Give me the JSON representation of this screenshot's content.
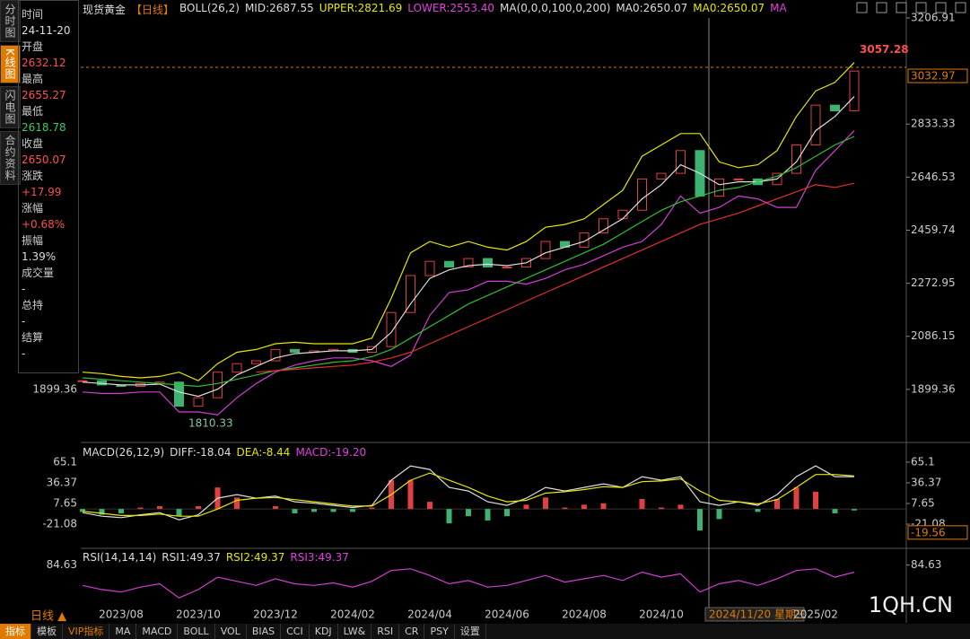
{
  "sidebar_tabs": [
    "分时图",
    "K线图",
    "闪电图",
    "合约资料"
  ],
  "info": [
    {
      "label": "时间",
      "value": "24-11-20",
      "color": "#ddd"
    },
    {
      "label": "开盘",
      "value": "2632.12",
      "color": "#ff5050"
    },
    {
      "label": "最高",
      "value": "2655.27",
      "color": "#ff5050"
    },
    {
      "label": "最低",
      "value": "2618.78",
      "color": "#3cc864"
    },
    {
      "label": "收盘",
      "value": "2650.07",
      "color": "#ff5050"
    },
    {
      "label": "涨跌",
      "value": "+17.99",
      "color": "#ff5050"
    },
    {
      "label": "涨幅",
      "value": "+0.68%",
      "color": "#ff5050"
    },
    {
      "label": "振幅",
      "value": "1.39%",
      "color": "#ddd"
    },
    {
      "label": "成交量",
      "value": "-",
      "color": "#ddd"
    },
    {
      "label": "总持",
      "value": "-",
      "color": "#ddd"
    },
    {
      "label": "结算",
      "value": "-",
      "color": "#ddd"
    }
  ],
  "header": {
    "instrument": "现货黄金",
    "period": "【日线】",
    "items": [
      {
        "text": "BOLL(26,2)",
        "color": "#ddd"
      },
      {
        "text": "MID:2687.55",
        "color": "#ddd"
      },
      {
        "text": "UPPER:2821.69",
        "color": "#e6e600"
      },
      {
        "text": "LOWER:2553.40",
        "color": "#e040e0"
      },
      {
        "text": "MA(0,0,0,100,0,200)",
        "color": "#ddd"
      },
      {
        "text": "MA0:2650.07",
        "color": "#ddd"
      },
      {
        "text": "MA0:2650.07",
        "color": "#e6e600"
      },
      {
        "text": "MA",
        "color": "#e040e0"
      }
    ]
  },
  "cursor": {
    "date": "2024/11/20 星期三"
  },
  "chart_data": [
    {
      "type": "candlestick",
      "categories": [
        null,
        null,
        "2023/08",
        null,
        null,
        null,
        "2023/10",
        null,
        null,
        null,
        "2023/12",
        null,
        null,
        null,
        "2024/02",
        null,
        null,
        null,
        "2024/04",
        null,
        null,
        null,
        "2024/06",
        null,
        null,
        null,
        "2024/08",
        null,
        null,
        null,
        "2024/10",
        null,
        null,
        null,
        null,
        null,
        null,
        null,
        "2025/02",
        null,
        null
      ],
      "close": [
        1930,
        1915,
        1910,
        1920,
        1925,
        1840,
        1870,
        1960,
        1990,
        2000,
        2040,
        2030,
        2035,
        2040,
        2030,
        2050,
        2170,
        2300,
        2350,
        2330,
        2360,
        2330,
        2330,
        2360,
        2420,
        2400,
        2450,
        2500,
        2530,
        2640,
        2660,
        2740,
        2580,
        2640,
        2640,
        2620,
        2660,
        2760,
        2900,
        2880,
        3020
      ],
      "up_color": "#e04040",
      "down_color": "#3cb371",
      "series": [
        {
          "color": "#e6e600",
          "values": [
            1960,
            1955,
            1945,
            1940,
            1945,
            1960,
            1930,
            1990,
            2030,
            2040,
            2060,
            2065,
            2060,
            2060,
            2060,
            2080,
            2220,
            2380,
            2420,
            2400,
            2420,
            2400,
            2390,
            2420,
            2470,
            2480,
            2500,
            2550,
            2600,
            2720,
            2760,
            2800,
            2800,
            2700,
            2680,
            2690,
            2740,
            2860,
            2950,
            2980,
            3050
          ]
        },
        {
          "color": "#dddddd",
          "values": [
            1925,
            1920,
            1915,
            1915,
            1918,
            1890,
            1875,
            1900,
            1950,
            1980,
            2010,
            2025,
            2030,
            2035,
            2035,
            2040,
            2100,
            2200,
            2290,
            2320,
            2335,
            2340,
            2335,
            2345,
            2380,
            2400,
            2420,
            2460,
            2500,
            2570,
            2620,
            2690,
            2660,
            2620,
            2630,
            2630,
            2640,
            2700,
            2810,
            2860,
            2930
          ]
        },
        {
          "color": "#d040d0",
          "values": [
            1890,
            1885,
            1885,
            1890,
            1890,
            1820,
            1820,
            1810,
            1870,
            1920,
            1960,
            1985,
            2000,
            2010,
            2010,
            2000,
            1980,
            2020,
            2160,
            2240,
            2250,
            2280,
            2280,
            2270,
            2290,
            2320,
            2340,
            2370,
            2400,
            2420,
            2480,
            2580,
            2520,
            2540,
            2580,
            2570,
            2540,
            2540,
            2670,
            2740,
            2810
          ]
        },
        {
          "color": "#30c030",
          "values": [
            1940,
            1935,
            1930,
            1925,
            1920,
            1915,
            1910,
            1920,
            1935,
            1950,
            1965,
            1975,
            1985,
            1995,
            2000,
            2015,
            2040,
            2080,
            2120,
            2160,
            2200,
            2230,
            2260,
            2290,
            2320,
            2350,
            2380,
            2410,
            2450,
            2490,
            2530,
            2560,
            2580,
            2600,
            2610,
            2630,
            2650,
            2680,
            2720,
            2760,
            2790
          ]
        },
        {
          "color": "#e03030",
          "values": [
            null,
            null,
            null,
            null,
            null,
            null,
            null,
            null,
            null,
            1960,
            1965,
            1970,
            1975,
            1980,
            1985,
            1995,
            2010,
            2030,
            2060,
            2090,
            2120,
            2150,
            2180,
            2210,
            2240,
            2270,
            2300,
            2330,
            2360,
            2390,
            2420,
            2450,
            2480,
            2500,
            2520,
            2545,
            2570,
            2595,
            2620,
            2610,
            2625
          ]
        }
      ],
      "ylim": [
        1715.7,
        3206.91
      ],
      "yticks": [
        1899.36,
        2086.15,
        2272.95,
        2459.74,
        2646.53,
        2833.33,
        3206.91
      ],
      "last": 3032.97,
      "high": 3057.28,
      "low": 1810.33
    },
    {
      "type": "macd",
      "title": "MACD(26,12,9)",
      "legend": [
        {
          "text": "DIFF:-18.04",
          "color": "#ddd"
        },
        {
          "text": "DEA:-8.44",
          "color": "#e6e600"
        },
        {
          "text": "MACD:-19.20",
          "color": "#e040e0"
        }
      ],
      "values": [
        -4,
        -8,
        -6,
        2,
        4,
        -10,
        4,
        30,
        16,
        0,
        4,
        -6,
        -4,
        -4,
        -4,
        2,
        40,
        40,
        10,
        -20,
        -10,
        -16,
        -10,
        6,
        16,
        2,
        6,
        8,
        0,
        14,
        2,
        6,
        -30,
        -14,
        0,
        -4,
        14,
        30,
        24,
        -6,
        -2
      ],
      "up_color": "#e04040",
      "down_color": "#3cb371",
      "series": [
        {
          "color": "#dddddd",
          "values": [
            -5,
            -10,
            -12,
            -8,
            -5,
            -15,
            -8,
            15,
            20,
            15,
            18,
            10,
            8,
            5,
            2,
            5,
            40,
            60,
            55,
            30,
            25,
            10,
            5,
            15,
            30,
            25,
            30,
            35,
            30,
            45,
            40,
            45,
            10,
            5,
            10,
            5,
            20,
            45,
            60,
            45,
            45
          ]
        },
        {
          "color": "#e6e600",
          "values": [
            -3,
            -6,
            -9,
            -9,
            -7,
            -10,
            -10,
            0,
            12,
            15,
            16,
            13,
            10,
            7,
            4,
            4,
            20,
            40,
            50,
            40,
            30,
            18,
            10,
            12,
            22,
            24,
            27,
            31,
            30,
            38,
            39,
            42,
            25,
            12,
            10,
            7,
            13,
            30,
            48,
            48,
            46
          ]
        }
      ],
      "ylim": [
        -53.5,
        77.6
      ],
      "yticks": [
        -21.08,
        7.65,
        36.37,
        65.1
      ],
      "last": -19.56
    },
    {
      "type": "line",
      "title": "RSI(14,14,14)",
      "legend": [
        {
          "text": "RSI1:49.37",
          "color": "#ddd"
        },
        {
          "text": "RSI2:49.37",
          "color": "#e6e600"
        },
        {
          "text": "RSI3:49.37",
          "color": "#e040e0"
        }
      ],
      "series": [
        {
          "color": "#d040d0",
          "values": [
            60,
            55,
            52,
            58,
            62,
            45,
            55,
            70,
            65,
            60,
            68,
            62,
            60,
            63,
            58,
            65,
            78,
            80,
            72,
            62,
            66,
            58,
            60,
            66,
            72,
            64,
            68,
            72,
            66,
            76,
            70,
            74,
            52,
            62,
            66,
            60,
            68,
            78,
            80,
            70,
            76
          ]
        }
      ],
      "ylim": [
        30,
        95
      ],
      "yticks": [
        84.63
      ]
    }
  ],
  "footer": {
    "period": "日线 ▲",
    "tools": [
      "指标",
      "模板",
      "VIP指标",
      "MA",
      "MACD",
      "BOLL",
      "VOL",
      "BIAS",
      "CCI",
      "KDJ",
      "LW&",
      "RSI",
      "CR",
      "PSY",
      "设置"
    ],
    "watermark": "1QH.CN"
  }
}
